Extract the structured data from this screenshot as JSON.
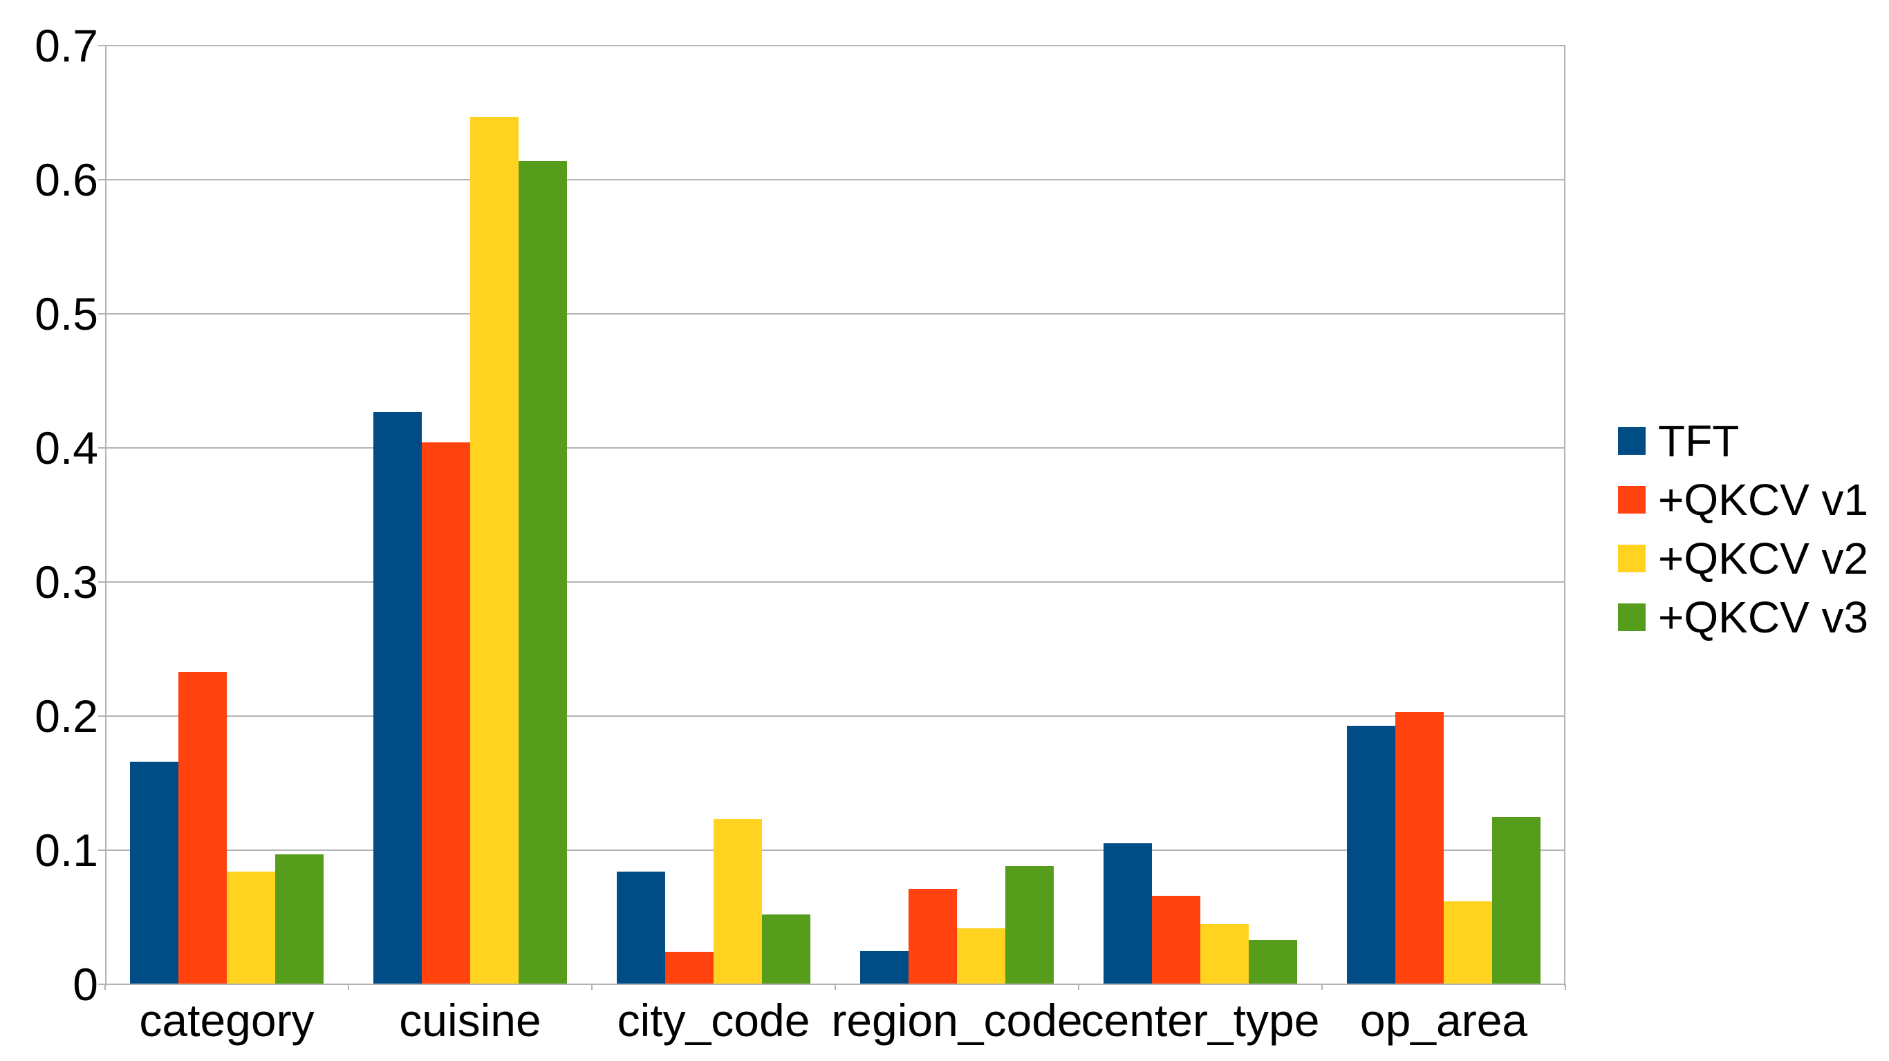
{
  "chart_data": {
    "type": "bar",
    "title": "",
    "categories": [
      "category",
      "cuisine",
      "city_code",
      "region_code",
      "center_type",
      "op_area"
    ],
    "series": [
      {
        "name": "TFT",
        "color": "#004C87",
        "values": [
          0.166,
          0.427,
          0.084,
          0.025,
          0.105,
          0.193
        ]
      },
      {
        "name": "+QKCV v1",
        "color": "#FF420E",
        "values": [
          0.233,
          0.404,
          0.024,
          0.071,
          0.066,
          0.203
        ]
      },
      {
        "name": "+QKCV v2",
        "color": "#FFD320",
        "values": [
          0.084,
          0.647,
          0.123,
          0.042,
          0.045,
          0.062
        ]
      },
      {
        "name": "+QKCV v3",
        "color": "#579D1C",
        "values": [
          0.097,
          0.614,
          0.052,
          0.088,
          0.033,
          0.125
        ]
      }
    ],
    "xlabel": "",
    "ylabel": "",
    "ylim": [
      0,
      0.7
    ],
    "yticks": [
      0,
      0.1,
      0.2,
      0.3,
      0.4,
      0.5,
      0.6,
      0.7
    ],
    "ytick_labels": [
      "0",
      "0.1",
      "0.2",
      "0.3",
      "0.4",
      "0.5",
      "0.6",
      "0.7"
    ],
    "grid": true,
    "legend_position": "right",
    "colors": {
      "gridline": "#B3B3B3",
      "axis": "#B3B3B3",
      "text": "#000000",
      "background": "#FFFFFF"
    }
  }
}
